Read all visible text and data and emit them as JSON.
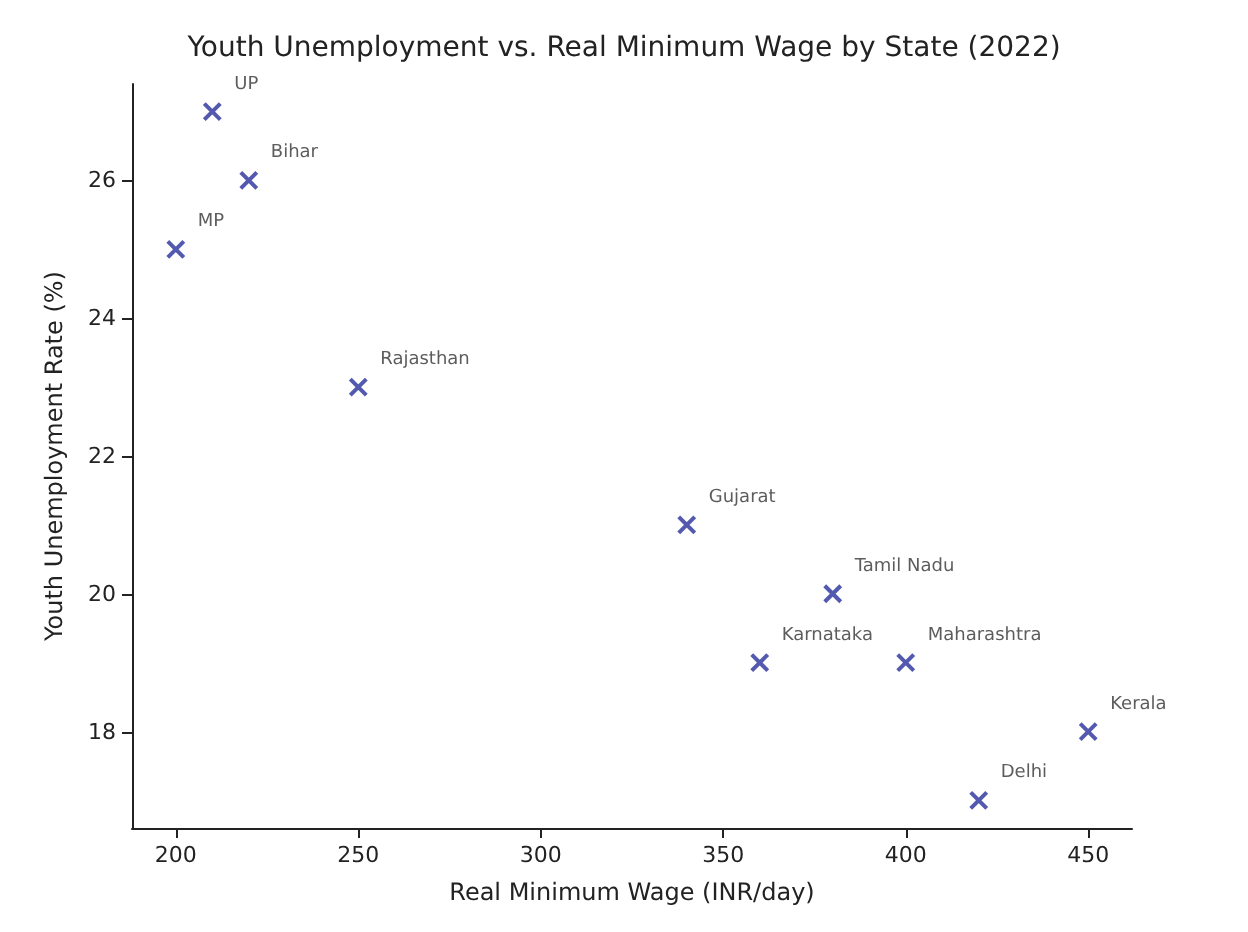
{
  "chart_data": {
    "type": "scatter",
    "title": "Youth Unemployment vs. Real Minimum Wage by State (2022)",
    "xlabel": "Real Minimum Wage (INR/day)",
    "ylabel": "Youth Unemployment Rate (%)",
    "x": [
      210,
      220,
      200,
      250,
      340,
      380,
      360,
      400,
      450,
      420
    ],
    "values": [
      27,
      26,
      25,
      23,
      21,
      20,
      19,
      19,
      18,
      17
    ],
    "color": "#28309a",
    "marker": "cross",
    "grid": false,
    "xlim": [
      188,
      462
    ],
    "xticks": [
      200,
      250,
      300,
      350,
      400,
      450
    ],
    "ylim": [
      16.6,
      27.4
    ],
    "yticks": [
      18,
      20,
      22,
      24,
      26
    ],
    "annotations": [
      {
        "text": "UP",
        "x": 210,
        "y": 27
      },
      {
        "text": "Bihar",
        "x": 220,
        "y": 26
      },
      {
        "text": "MP",
        "x": 200,
        "y": 25
      },
      {
        "text": "Rajasthan",
        "x": 250,
        "y": 23
      },
      {
        "text": "Gujarat",
        "x": 340,
        "y": 21
      },
      {
        "text": "Tamil Nadu",
        "x": 380,
        "y": 20
      },
      {
        "text": "Karnataka",
        "x": 360,
        "y": 19
      },
      {
        "text": "Maharashtra",
        "x": 400,
        "y": 19
      },
      {
        "text": "Kerala",
        "x": 450,
        "y": 18
      },
      {
        "text": "Delhi",
        "x": 420,
        "y": 17
      }
    ]
  }
}
